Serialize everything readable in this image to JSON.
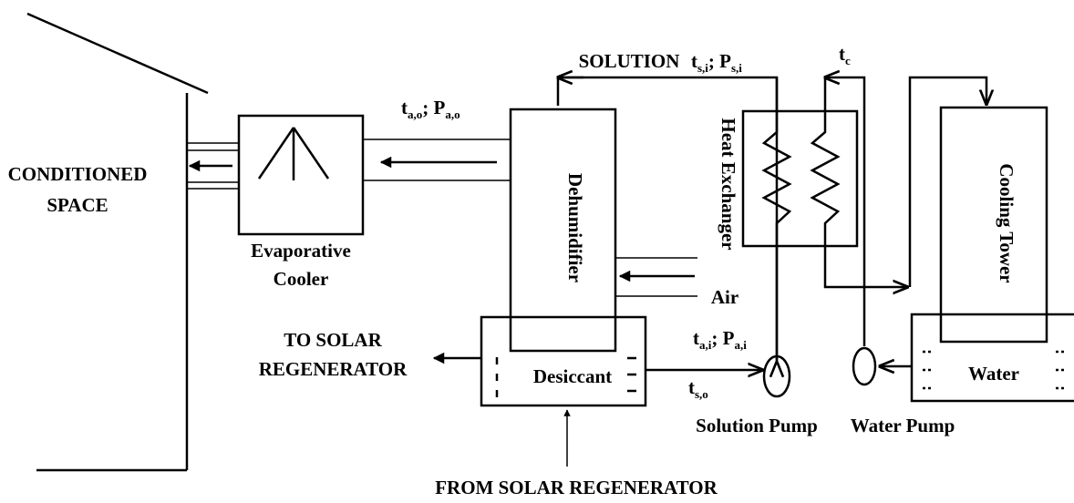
{
  "space": {
    "lines": [
      "CONDITIONED",
      "SPACE"
    ]
  },
  "evaporative_cooler": {
    "lines": [
      "Evaporative",
      "Cooler"
    ]
  },
  "dehumidifier": "Dehumidifier",
  "heat_exchanger": "Heat Exchanger",
  "cooling_tower": "Cooling Tower",
  "desiccant": "Desiccant",
  "water": "Water",
  "air": "Air",
  "solution": "SOLUTION",
  "solution_pump": "Solution Pump",
  "water_pump": "Water Pump",
  "to_regenerator": {
    "lines": [
      "TO SOLAR",
      "REGENERATOR"
    ]
  },
  "from_regenerator": "FROM SOLAR REGENERATOR",
  "states": {
    "air_out": [
      {
        "main": "t",
        "sub": "a,o"
      },
      {
        "main": "; P",
        "sub": "a,o"
      }
    ],
    "solution_in": [
      {
        "main": "t",
        "sub": "s,i"
      },
      {
        "main": "; P",
        "sub": "s,i"
      }
    ],
    "cooling": [
      {
        "main": "t",
        "sub": "c"
      }
    ],
    "air_in": [
      {
        "main": "t",
        "sub": "a,i"
      },
      {
        "main": "; P",
        "sub": "a,i"
      }
    ],
    "solution_out": [
      {
        "main": "t",
        "sub": "s,o"
      }
    ]
  }
}
